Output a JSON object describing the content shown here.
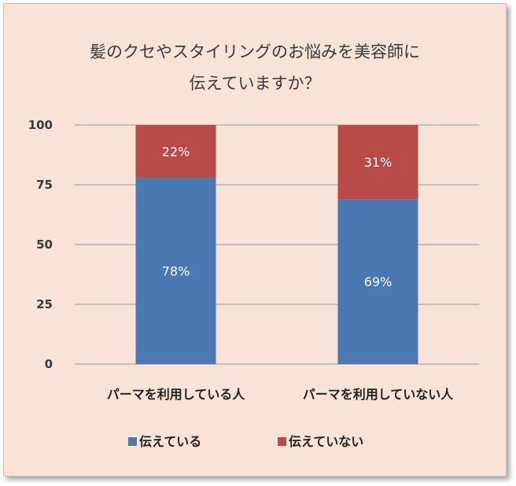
{
  "chart_data": {
    "type": "bar",
    "stacked": true,
    "title_lines": [
      "髪のクセやスタイリングのお悩みを美容師に",
      "伝えていますか？"
    ],
    "categories": [
      "パーマを利用している人",
      "パーマを利用していない人"
    ],
    "series": [
      {
        "name": "伝えている",
        "values": [
          78,
          69
        ],
        "labels": [
          "78%",
          "69%"
        ],
        "color": "#4a78b3"
      },
      {
        "name": "伝えていない",
        "values": [
          22,
          31
        ],
        "labels": [
          "22%",
          "31%"
        ],
        "color": "#b84a47"
      }
    ],
    "ylim": [
      0,
      100
    ],
    "yticks": [
      0,
      25,
      50,
      75,
      100
    ],
    "grid": true,
    "legend_position": "bottom"
  }
}
